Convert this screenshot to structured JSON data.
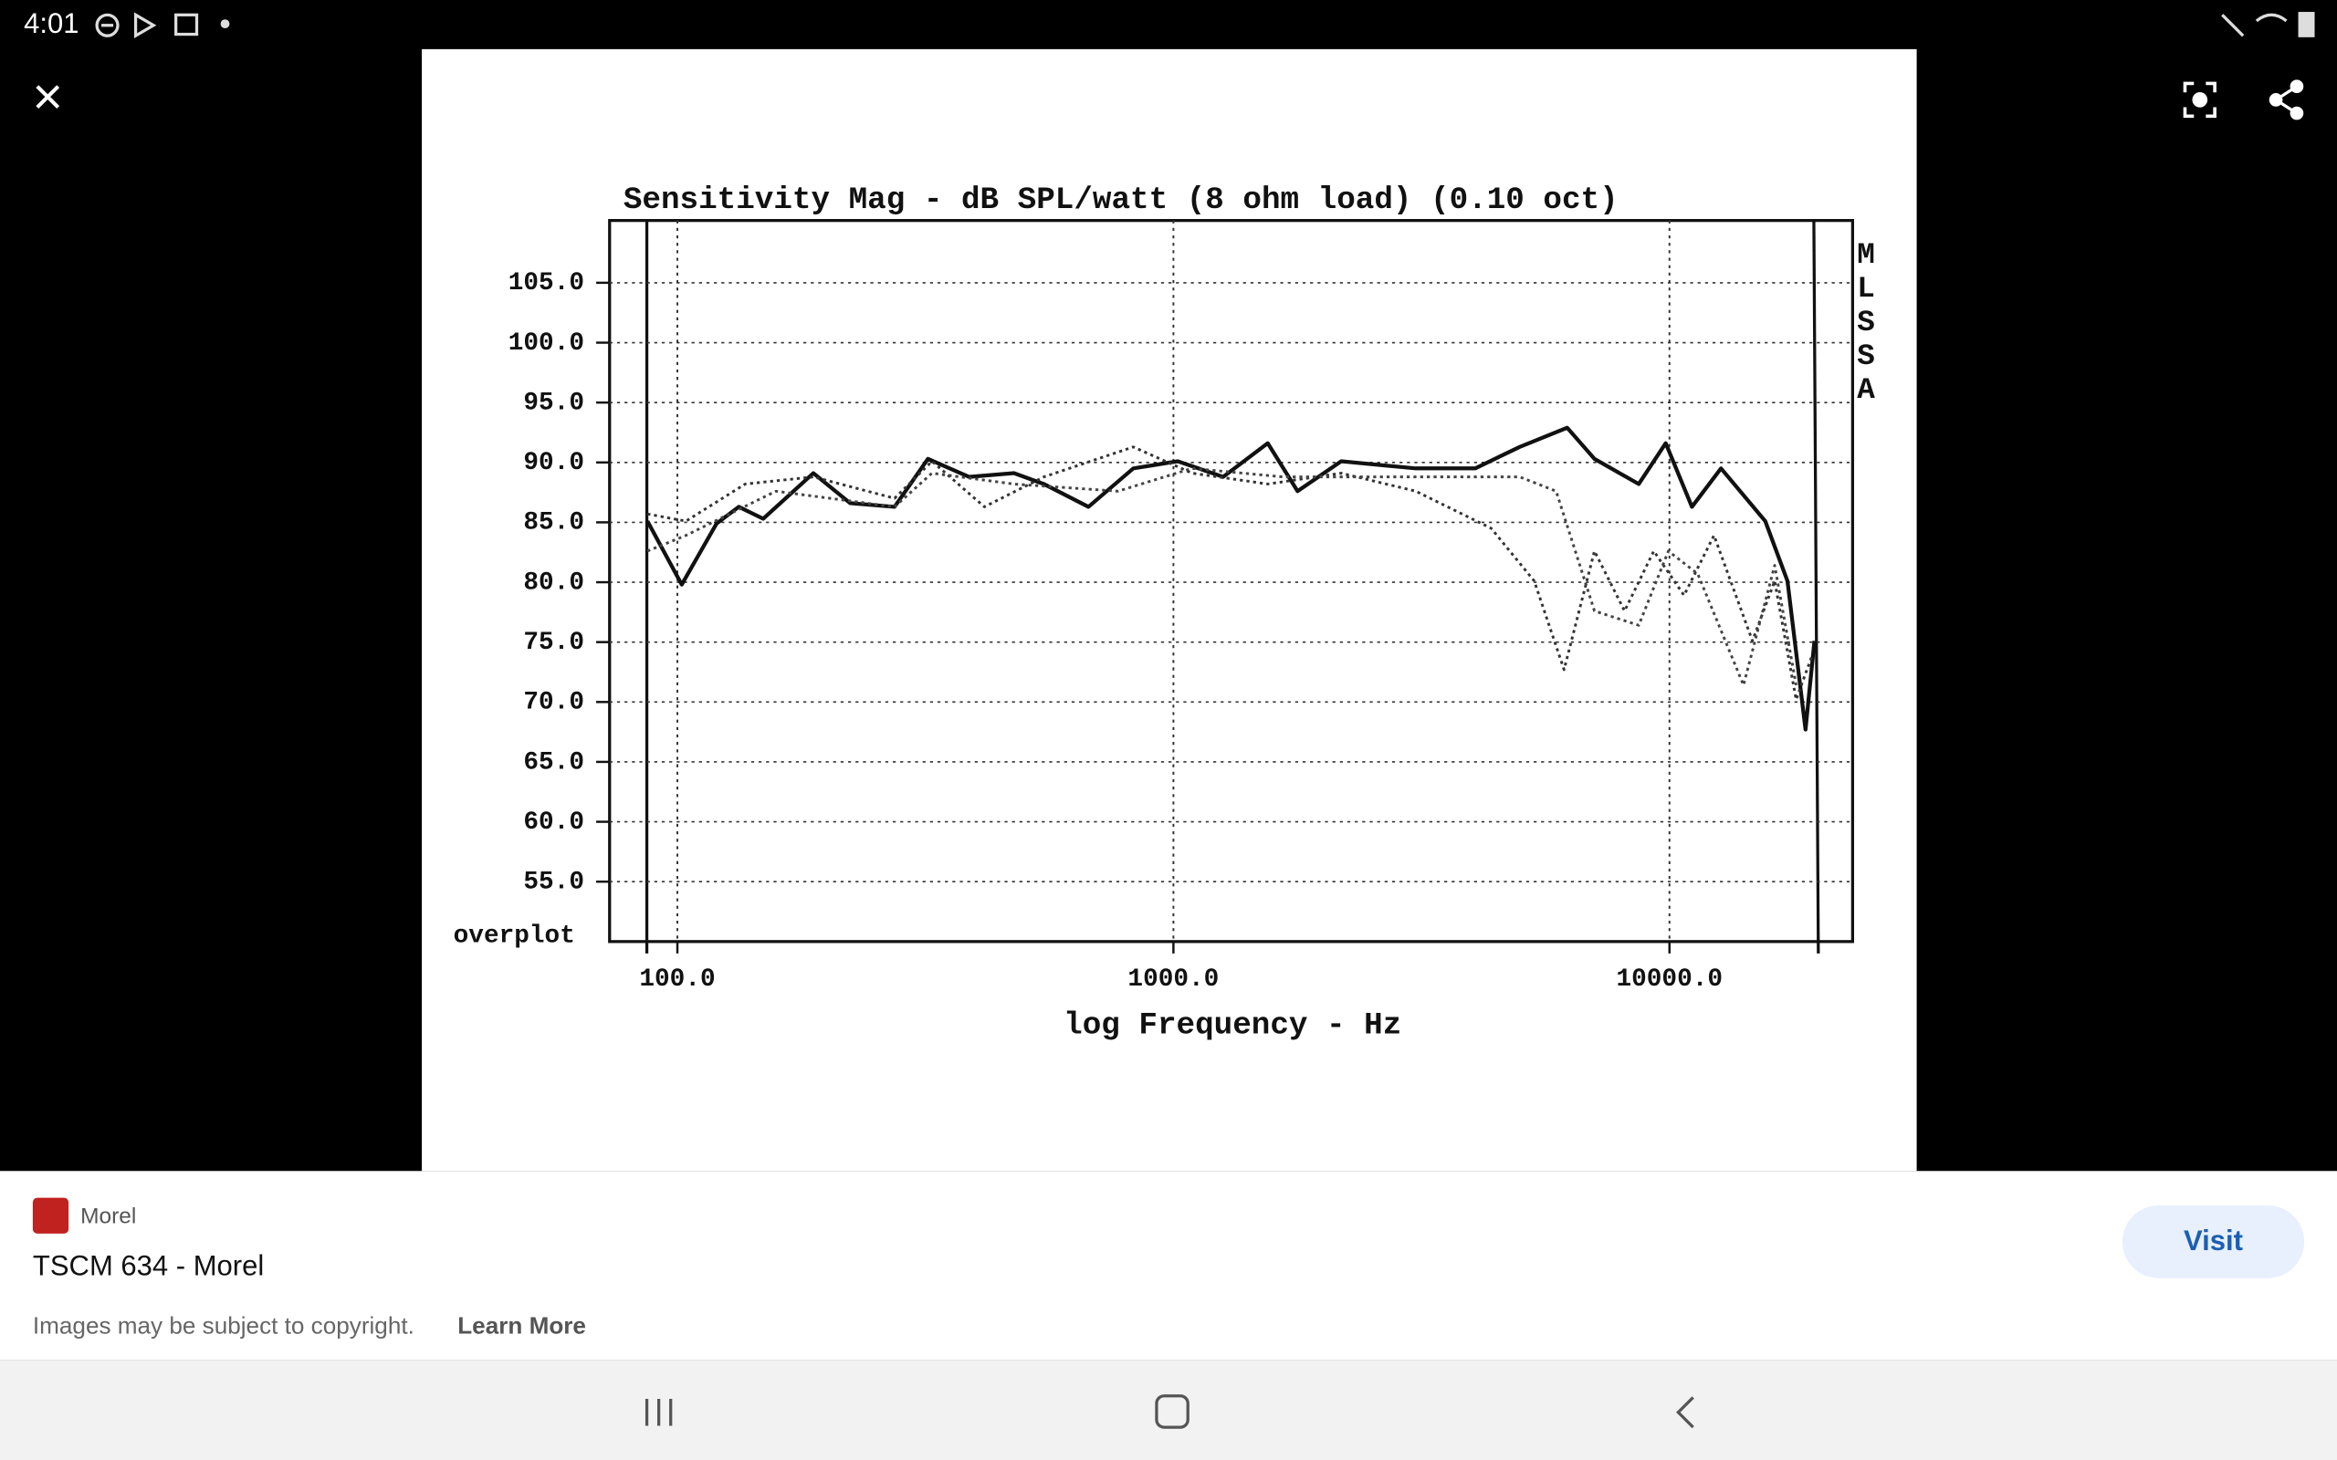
{
  "status_bar": {
    "time": "4:01"
  },
  "chart_data": {
    "type": "line",
    "title": "Sensitivity Mag - dB SPL/watt (8 ohm load) (0.10 oct)",
    "x_label": "log Frequency - Hz",
    "corner_label": "overplot",
    "side_label": "MLSSA",
    "xscale": "log",
    "grid": true,
    "xlim": [
      73,
      23400
    ],
    "ylim": [
      50,
      110.2
    ],
    "xticks": [
      {
        "value": 100,
        "label": "100.0"
      },
      {
        "value": 1000,
        "label": "1000.0"
      },
      {
        "value": 10000,
        "label": "10000.0"
      }
    ],
    "yticks": [
      {
        "value": 55,
        "label": "55.0"
      },
      {
        "value": 60,
        "label": "60.0"
      },
      {
        "value": 65,
        "label": "65.0"
      },
      {
        "value": 70,
        "label": "70.0"
      },
      {
        "value": 75,
        "label": "75.0"
      },
      {
        "value": 80,
        "label": "80.0"
      },
      {
        "value": 85,
        "label": "85.0"
      },
      {
        "value": 90,
        "label": "90.0"
      },
      {
        "value": 95,
        "label": "95.0"
      },
      {
        "value": 100,
        "label": "100.0"
      },
      {
        "value": 105,
        "label": "105.0"
      }
    ],
    "series": [
      {
        "color": "#111111",
        "line_style": "solid",
        "x": [
          87,
          102,
          120,
          133,
          149,
          188,
          223,
          274,
          320,
          387,
          477,
          548,
          674,
          830,
          1020,
          1260,
          1550,
          1780,
          2180,
          3080,
          4060,
          4990,
          6220,
          7060,
          8670,
          9830,
          11100,
          12700,
          15600,
          17300,
          18800,
          19600
        ],
        "values": [
          85.1,
          79.8,
          84.9,
          86.3,
          85.3,
          89.1,
          86.6,
          86.3,
          90.3,
          88.8,
          89.1,
          88.2,
          86.3,
          89.5,
          90.1,
          88.8,
          91.6,
          87.6,
          90.1,
          89.5,
          89.5,
          91.3,
          92.9,
          90.3,
          88.2,
          91.6,
          86.3,
          89.5,
          85.1,
          80.1,
          67.7,
          75.1
        ]
      },
      {
        "color": "#333333",
        "line_style": "dotted",
        "x": [
          87,
          104,
          137,
          188,
          274,
          326,
          416,
          548,
          830,
          1090,
          1550,
          2180,
          3080,
          4370,
          5340,
          6130,
          7060,
          8120,
          9300,
          10700,
          12300,
          14700,
          16300,
          18000,
          19400
        ],
        "values": [
          85.7,
          85.1,
          88.2,
          88.8,
          87.0,
          90.1,
          86.3,
          88.8,
          91.3,
          89.1,
          88.2,
          89.1,
          87.6,
          84.5,
          80.1,
          72.7,
          82.6,
          77.6,
          82.6,
          78.9,
          83.9,
          75.1,
          80.1,
          70.2,
          73.9
        ]
      },
      {
        "color": "#444444",
        "line_style": "dotted",
        "x": [
          87,
          104,
          158,
          274,
          326,
          477,
          773,
          1090,
          1660,
          2490,
          3540,
          4990,
          5910,
          7060,
          8670,
          9950,
          11400,
          14100,
          16300,
          18000
        ],
        "values": [
          82.6,
          83.9,
          87.6,
          86.3,
          89.1,
          88.2,
          87.6,
          89.5,
          88.8,
          88.8,
          88.8,
          88.8,
          87.6,
          77.6,
          76.4,
          82.6,
          80.7,
          71.4,
          81.4,
          71.4
        ]
      }
    ]
  },
  "source": {
    "site": "Morel",
    "title": "TSCM 634 - Morel",
    "notice": "Images may be subject to copyright.",
    "learn_more": "Learn More",
    "visit": "Visit"
  }
}
